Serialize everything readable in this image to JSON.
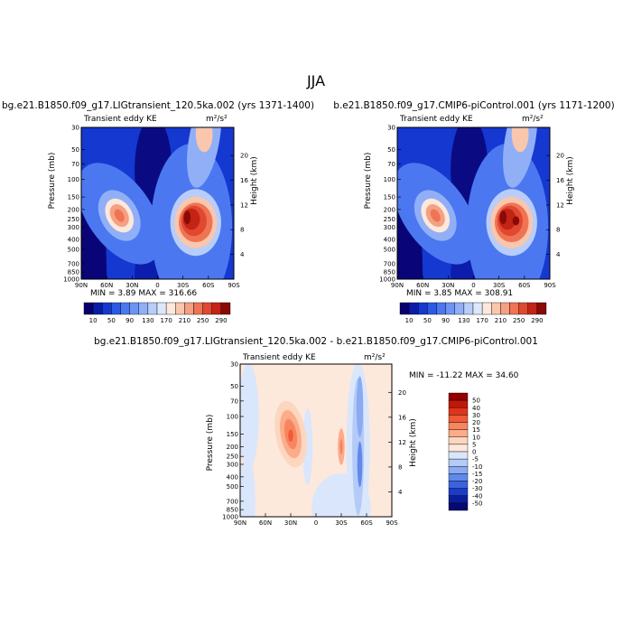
{
  "page_title": "JJA",
  "chart_data": [
    {
      "type": "heatmap",
      "title": "bg.e21.B1850.f09_g17.LIGtransient_120.5ka.002 (yrs 1371-1400)",
      "left_label": "Transient eddy KE",
      "units_label": "m²/s²",
      "xlabel": "",
      "ylabel": "Pressure (mb)",
      "ylabel_right": "Height (km)",
      "x_ticks": [
        "90N",
        "60N",
        "30N",
        "0",
        "30S",
        "60S",
        "90S"
      ],
      "y_ticks": [
        "30",
        "50",
        "70",
        "100",
        "150",
        "200",
        "250",
        "300",
        "400",
        "500",
        "700",
        "850",
        "1000"
      ],
      "right_ticks": [
        "20",
        "16",
        "12",
        "8",
        "4"
      ],
      "xlim": [
        90,
        -90
      ],
      "ylim": [
        1000,
        30
      ],
      "stats_text": "MIN =    3.89   MAX =  316.66",
      "min": 3.89,
      "max": 316.66,
      "colorbar_labels": [
        "10",
        "50",
        "90",
        "130",
        "170",
        "210",
        "250",
        "290"
      ],
      "colorbar_levels": [
        10,
        30,
        50,
        70,
        90,
        110,
        130,
        150,
        170,
        190,
        210,
        230,
        250,
        270,
        290
      ]
    },
    {
      "type": "heatmap",
      "title": "b.e21.B1850.f09_g17.CMIP6-piControl.001 (yrs 1171-1200)",
      "left_label": "Transient eddy KE",
      "units_label": "m²/s²",
      "xlabel": "",
      "ylabel": "Pressure (mb)",
      "ylabel_right": "Height (km)",
      "x_ticks": [
        "90N",
        "60N",
        "30N",
        "0",
        "30S",
        "60S",
        "90S"
      ],
      "y_ticks": [
        "30",
        "50",
        "70",
        "100",
        "150",
        "200",
        "250",
        "300",
        "400",
        "500",
        "700",
        "850",
        "1000"
      ],
      "right_ticks": [
        "20",
        "16",
        "12",
        "8",
        "4"
      ],
      "xlim": [
        90,
        -90
      ],
      "ylim": [
        1000,
        30
      ],
      "stats_text": "MIN =    3.85   MAX =  308.91",
      "min": 3.85,
      "max": 308.91,
      "colorbar_labels": [
        "10",
        "50",
        "90",
        "130",
        "170",
        "210",
        "250",
        "290"
      ],
      "colorbar_levels": [
        10,
        30,
        50,
        70,
        90,
        110,
        130,
        150,
        170,
        190,
        210,
        230,
        250,
        270,
        290
      ]
    },
    {
      "type": "heatmap",
      "title": "bg.e21.B1850.f09_g17.LIGtransient_120.5ka.002 - b.e21.B1850.f09_g17.CMIP6-piControl.001",
      "left_label": "Transient eddy KE",
      "units_label": "m²/s²",
      "xlabel": "",
      "ylabel": "Pressure (mb)",
      "ylabel_right": "Height (km)",
      "x_ticks": [
        "90N",
        "60N",
        "30N",
        "0",
        "30S",
        "60S",
        "90S"
      ],
      "y_ticks": [
        "30",
        "50",
        "70",
        "100",
        "150",
        "200",
        "250",
        "300",
        "400",
        "500",
        "700",
        "850",
        "1000"
      ],
      "right_ticks": [
        "20",
        "16",
        "12",
        "8",
        "4"
      ],
      "xlim": [
        90,
        -90
      ],
      "ylim": [
        1000,
        30
      ],
      "stats_text": "MIN = -11.22   MAX =  34.60",
      "min": -11.22,
      "max": 34.6,
      "colorbar_labels": [
        "50",
        "40",
        "30",
        "20",
        "15",
        "10",
        "5",
        "0",
        "-5",
        "-10",
        "-15",
        "-20",
        "-30",
        "-40",
        "-50"
      ]
    }
  ],
  "colors": {
    "seq": [
      "#08006e",
      "#0b1ba8",
      "#1538d1",
      "#2b59e6",
      "#4b78f0",
      "#6d94f5",
      "#91aff7",
      "#b8cdf9",
      "#dce7fb",
      "#fde8dc",
      "#f9c6ae",
      "#f5a082",
      "#ef7454",
      "#e14830",
      "#c32415",
      "#8a0a05"
    ],
    "div": [
      "#920000",
      "#c01808",
      "#e0341a",
      "#f05a38",
      "#f7855e",
      "#fbac8a",
      "#fdd6c0",
      "#fde8dc",
      "#dae6fb",
      "#b4cbf7",
      "#8aaaf2",
      "#6189ec",
      "#3b63e0",
      "#1c3cc8",
      "#0a1e9c",
      "#040a72"
    ]
  }
}
